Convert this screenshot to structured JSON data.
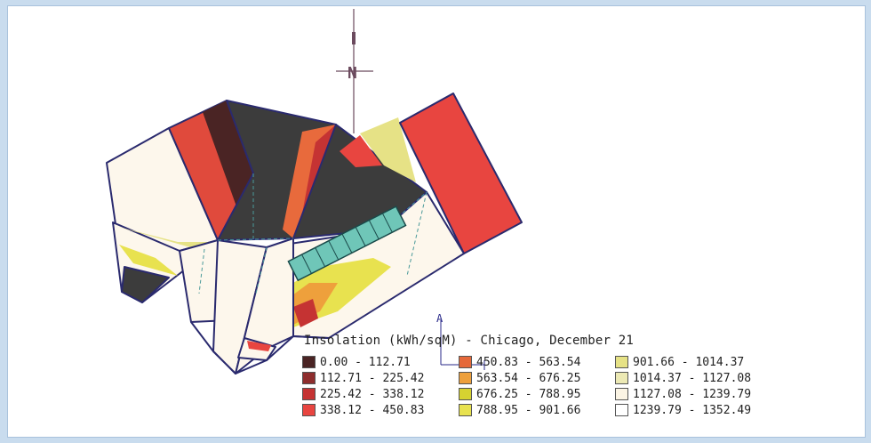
{
  "compass": {
    "label": "N"
  },
  "marker": {
    "label": "A"
  },
  "legend": {
    "title": "Insolation (kWh/sqM) - Chicago, December 21",
    "items": [
      {
        "label": "0.00  -  112.71",
        "color": "#4a2424"
      },
      {
        "label": "112.71  -  225.42",
        "color": "#8e2d2d"
      },
      {
        "label": "225.42  -  338.12",
        "color": "#c53333"
      },
      {
        "label": "338.12  -  450.83",
        "color": "#e84540"
      },
      {
        "label": "450.83  -  563.54",
        "color": "#e5683a"
      },
      {
        "label": "563.54  -  676.25",
        "color": "#eea03c"
      },
      {
        "label": "676.25  -  788.95",
        "color": "#d6d231"
      },
      {
        "label": "788.95  -  901.66",
        "color": "#e8e24f"
      },
      {
        "label": "901.66  -  1014.37",
        "color": "#e6e286"
      },
      {
        "label": "1014.37  -  1127.08",
        "color": "#ece9b4"
      },
      {
        "label": "1127.08  -  1239.79",
        "color": "#fbf4e4"
      },
      {
        "label": "1239.79  -  1352.49",
        "color": "#ffffff"
      }
    ]
  }
}
